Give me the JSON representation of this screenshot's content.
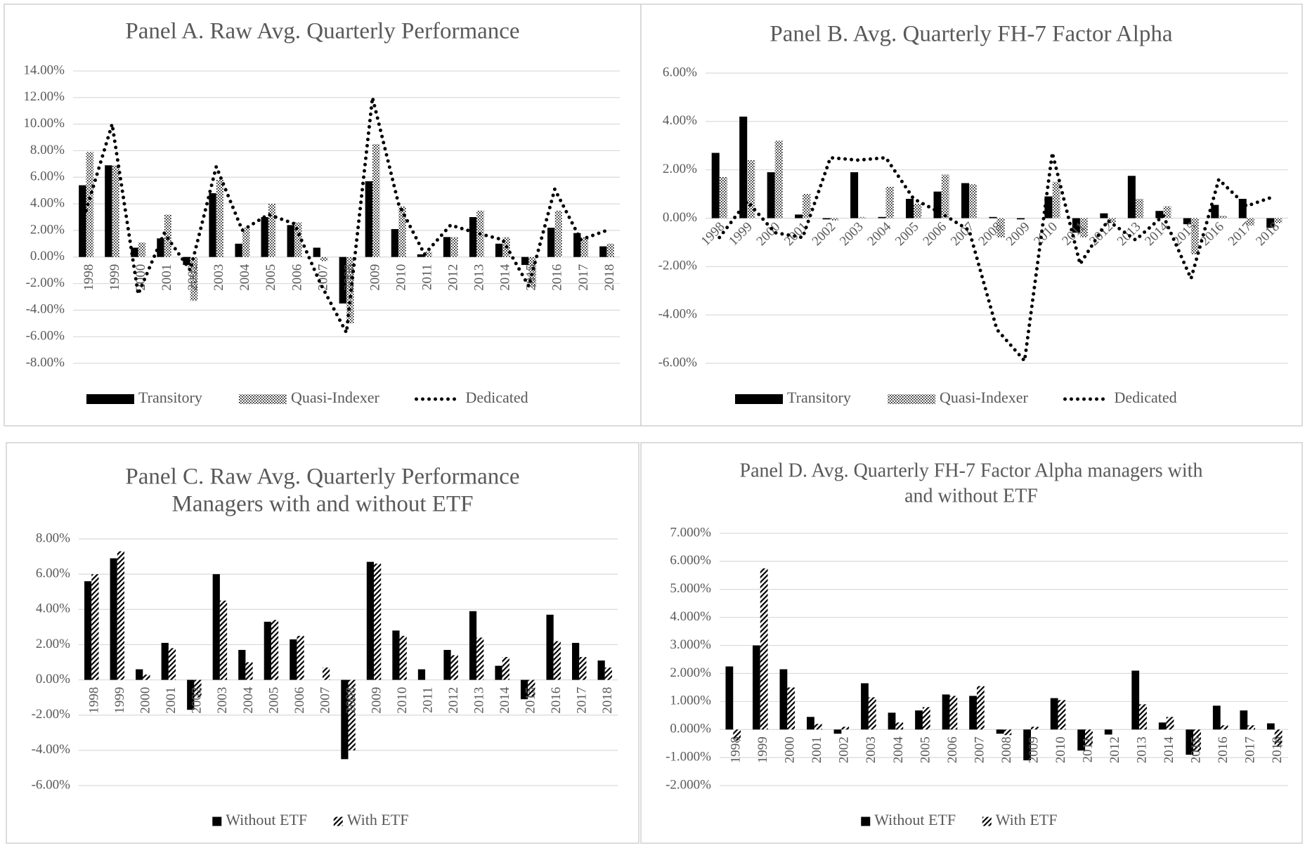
{
  "chart_data": [
    {
      "type": "combo",
      "title": [
        "Panel A. Raw Avg. Quarterly Performance"
      ],
      "legend": "bottom",
      "grid": true,
      "categories": [
        "1998",
        "1999",
        "2000",
        "2001",
        "2002",
        "2003",
        "2004",
        "2005",
        "2006",
        "2007",
        "2008",
        "2009",
        "2010",
        "2011",
        "2012",
        "2013",
        "2014",
        "2015",
        "2016",
        "2017",
        "2018"
      ],
      "ylim": [
        -8,
        14
      ],
      "yticks": [
        {
          "value": -8,
          "label": "-8.00%"
        },
        {
          "value": -6,
          "label": "-6.00%"
        },
        {
          "value": -4,
          "label": "-4.00%"
        },
        {
          "value": -2,
          "label": "-2.00%"
        },
        {
          "value": 0,
          "label": "0.00%"
        },
        {
          "value": 2,
          "label": "2.00%"
        },
        {
          "value": 4,
          "label": "4.00%"
        },
        {
          "value": 6,
          "label": "6.00%"
        },
        {
          "value": 8,
          "label": "8.00%"
        },
        {
          "value": 10,
          "label": "10.00%"
        },
        {
          "value": 12,
          "label": "12.00%"
        },
        {
          "value": 14,
          "label": "14.00%"
        }
      ],
      "series": [
        {
          "name": "Transitory",
          "type": "bar",
          "color": "#000000",
          "pattern": "solid",
          "values": [
            5.4,
            6.9,
            0.7,
            1.4,
            -0.6,
            4.8,
            1.0,
            3.0,
            2.4,
            0.7,
            -3.5,
            5.7,
            2.1,
            0.2,
            1.5,
            3.0,
            1.0,
            -0.6,
            2.2,
            1.8,
            0.8
          ]
        },
        {
          "name": "Quasi-Indexer",
          "type": "bar",
          "color": "#000000",
          "pattern": "dots",
          "values": [
            7.9,
            6.9,
            1.1,
            3.2,
            -3.3,
            5.8,
            2.2,
            4.0,
            2.6,
            -0.3,
            -5.0,
            8.5,
            3.8,
            0.4,
            1.5,
            3.5,
            1.5,
            -2.3,
            3.5,
            1.5,
            1.0
          ]
        },
        {
          "name": "Dedicated",
          "type": "line",
          "color": "#000000",
          "pattern": "dotted",
          "values": [
            3.5,
            10.0,
            -2.8,
            1.8,
            -1.0,
            6.8,
            2.0,
            3.2,
            2.5,
            -2.0,
            -5.7,
            12.0,
            4.0,
            0.2,
            2.4,
            1.8,
            1.3,
            -2.2,
            5.1,
            1.3,
            2.0
          ]
        }
      ]
    },
    {
      "type": "combo",
      "title": [
        "Panel B. Avg. Quarterly FH-7 Factor Alpha"
      ],
      "legend": "bottom",
      "grid": true,
      "categories": [
        "1998",
        "1999",
        "2000",
        "2001",
        "2002",
        "2003",
        "2004",
        "2005",
        "2006",
        "2007",
        "2008",
        "2009",
        "2010",
        "2011",
        "2012",
        "2013",
        "2014",
        "2015",
        "2016",
        "2017",
        "2018"
      ],
      "ylim": [
        -6,
        6
      ],
      "yticks": [
        {
          "value": -6,
          "label": "-6.00%"
        },
        {
          "value": -4,
          "label": "-4.00%"
        },
        {
          "value": -2,
          "label": "-2.00%"
        },
        {
          "value": 0,
          "label": "0.00%"
        },
        {
          "value": 2,
          "label": "2.00%"
        },
        {
          "value": 4,
          "label": "4.00%"
        },
        {
          "value": 6,
          "label": "6.00%"
        }
      ],
      "series": [
        {
          "name": "Transitory",
          "type": "bar",
          "color": "#000000",
          "pattern": "solid",
          "values": [
            2.7,
            4.2,
            1.9,
            0.15,
            -0.05,
            1.9,
            0.05,
            0.8,
            1.1,
            1.45,
            0.05,
            -0.05,
            0.9,
            -0.6,
            0.2,
            1.75,
            0.3,
            -0.25,
            0.55,
            0.8,
            -0.4
          ]
        },
        {
          "name": "Quasi-Indexer",
          "type": "bar",
          "color": "#000000",
          "pattern": "dots",
          "values": [
            1.7,
            2.4,
            3.2,
            1.0,
            -0.1,
            0.05,
            1.3,
            0.6,
            1.8,
            1.4,
            -0.8,
            0.0,
            1.5,
            -0.8,
            -0.2,
            0.8,
            0.5,
            -1.5,
            0.1,
            -0.3,
            -0.2
          ]
        },
        {
          "name": "Dedicated",
          "type": "line",
          "color": "#000000",
          "pattern": "dotted",
          "values": [
            -0.8,
            0.7,
            -0.6,
            -0.8,
            2.5,
            2.4,
            2.5,
            0.8,
            0.2,
            -0.5,
            -4.6,
            -5.9,
            2.7,
            -1.9,
            -0.1,
            -0.9,
            0.1,
            -2.5,
            1.6,
            0.5,
            0.9
          ]
        }
      ]
    },
    {
      "type": "bar",
      "title": [
        "Panel C. Raw Avg. Quarterly Performance",
        "Managers with and without ETF"
      ],
      "legend": "bottom",
      "grid": true,
      "categories": [
        "1998",
        "1999",
        "2000",
        "2001",
        "2002",
        "2003",
        "2004",
        "2005",
        "2006",
        "2007",
        "2008",
        "2009",
        "2010",
        "2011",
        "2012",
        "2013",
        "2014",
        "2015",
        "2016",
        "2017",
        "2018"
      ],
      "ylim": [
        -6,
        8
      ],
      "yticks": [
        {
          "value": -6,
          "label": "-6.00%"
        },
        {
          "value": -4,
          "label": "-4.00%"
        },
        {
          "value": -2,
          "label": "-2.00%"
        },
        {
          "value": 0,
          "label": "0.00%"
        },
        {
          "value": 2,
          "label": "2.00%"
        },
        {
          "value": 4,
          "label": "4.00%"
        },
        {
          "value": 6,
          "label": "6.00%"
        },
        {
          "value": 8,
          "label": "8.00%"
        }
      ],
      "series": [
        {
          "name": "Without ETF",
          "type": "bar",
          "color": "#000000",
          "pattern": "solid",
          "values": [
            5.6,
            6.9,
            0.6,
            2.1,
            -1.7,
            6.0,
            1.7,
            3.3,
            2.3,
            0.0,
            -4.5,
            6.7,
            2.8,
            0.6,
            1.7,
            3.9,
            0.8,
            -1.1,
            3.7,
            2.1,
            1.1
          ]
        },
        {
          "name": "With ETF",
          "type": "bar",
          "color": "#000000",
          "pattern": "hatch",
          "values": [
            6.0,
            7.3,
            0.3,
            1.8,
            -1.0,
            4.5,
            1.0,
            3.4,
            2.5,
            0.7,
            -4.0,
            6.6,
            2.5,
            0.0,
            1.4,
            2.4,
            1.3,
            -1.0,
            2.2,
            1.3,
            0.7
          ]
        }
      ]
    },
    {
      "type": "bar",
      "title": [
        "Panel D. Avg. Quarterly FH-7 Factor Alpha managers with",
        "and without ETF"
      ],
      "legend": "bottom",
      "grid": true,
      "categories": [
        "1998",
        "1999",
        "2000",
        "2001",
        "2002",
        "2003",
        "2004",
        "2005",
        "2006",
        "2007",
        "2008",
        "2009",
        "2010",
        "2011",
        "2012",
        "2013",
        "2014",
        "2015",
        "2016",
        "2017",
        "2018"
      ],
      "ylim": [
        -2,
        7
      ],
      "yticks": [
        {
          "value": -2,
          "label": "-2.000%"
        },
        {
          "value": -1,
          "label": "-1.000%"
        },
        {
          "value": 0,
          "label": "0.000%"
        },
        {
          "value": 1,
          "label": "1.000%"
        },
        {
          "value": 2,
          "label": "2.000%"
        },
        {
          "value": 3,
          "label": "3.000%"
        },
        {
          "value": 4,
          "label": "4.000%"
        },
        {
          "value": 5,
          "label": "5.000%"
        },
        {
          "value": 6,
          "label": "6.000%"
        },
        {
          "value": 7,
          "label": "7.000%"
        }
      ],
      "series": [
        {
          "name": "Without ETF",
          "type": "bar",
          "color": "#000000",
          "pattern": "solid",
          "values": [
            2.25,
            3.0,
            2.15,
            0.45,
            -0.15,
            1.65,
            0.6,
            0.68,
            1.25,
            1.2,
            -0.15,
            -1.1,
            1.12,
            -0.75,
            -0.18,
            2.1,
            0.25,
            -0.9,
            0.85,
            0.68,
            0.22
          ]
        },
        {
          "name": "With ETF",
          "type": "bar",
          "color": "#000000",
          "pattern": "hatch",
          "values": [
            -0.4,
            5.75,
            1.5,
            0.2,
            0.1,
            1.15,
            0.25,
            0.8,
            1.2,
            1.55,
            -0.2,
            0.1,
            1.05,
            -0.6,
            0.0,
            0.9,
            0.45,
            -0.8,
            0.15,
            0.15,
            -0.6
          ]
        }
      ]
    }
  ]
}
